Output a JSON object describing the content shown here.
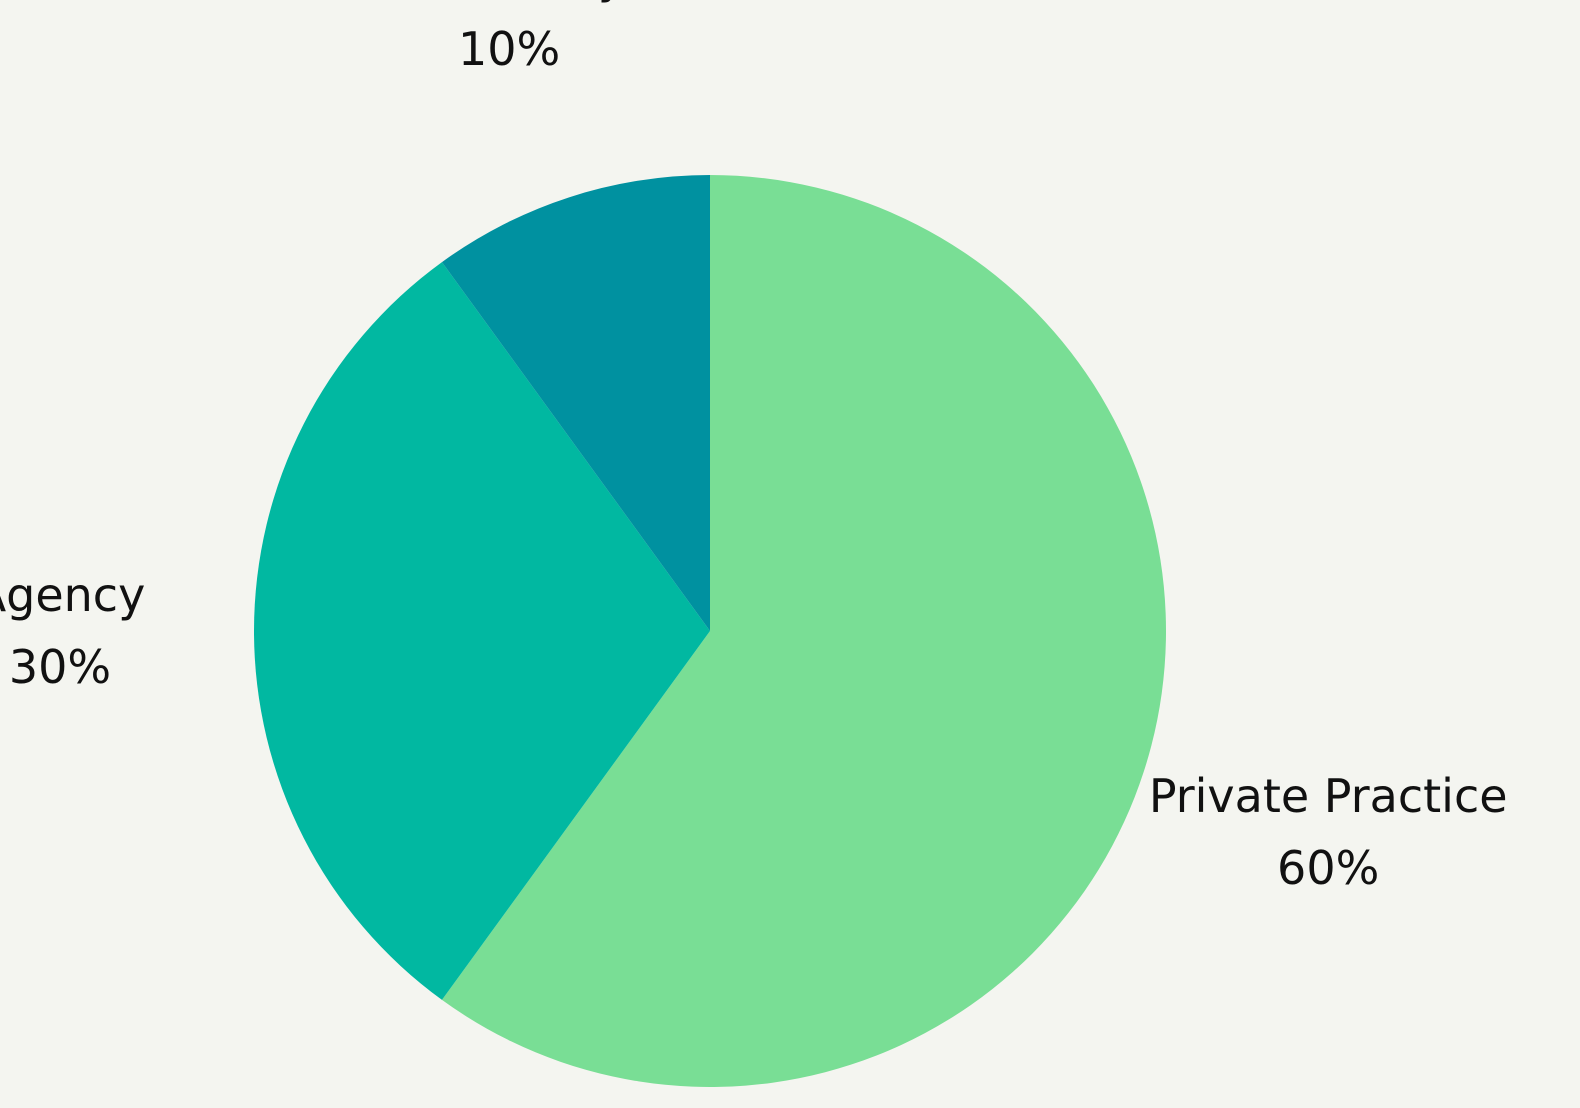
{
  "chart_data": {
    "type": "pie",
    "title": "",
    "start_angle_deg": 0,
    "direction": "clockwise",
    "legend": "none",
    "slices": [
      {
        "label": "Private Practice",
        "value": 60,
        "value_label": "60%",
        "color": "#79de95"
      },
      {
        "label": "Agency",
        "value": 30,
        "value_label": "30%",
        "color": "#01b8a1"
      },
      {
        "label": "University",
        "value": 10,
        "value_label": "10%",
        "color": "#0091a0"
      }
    ]
  },
  "colors": {
    "background": "#f4f5f0",
    "label_text": "#111111"
  }
}
